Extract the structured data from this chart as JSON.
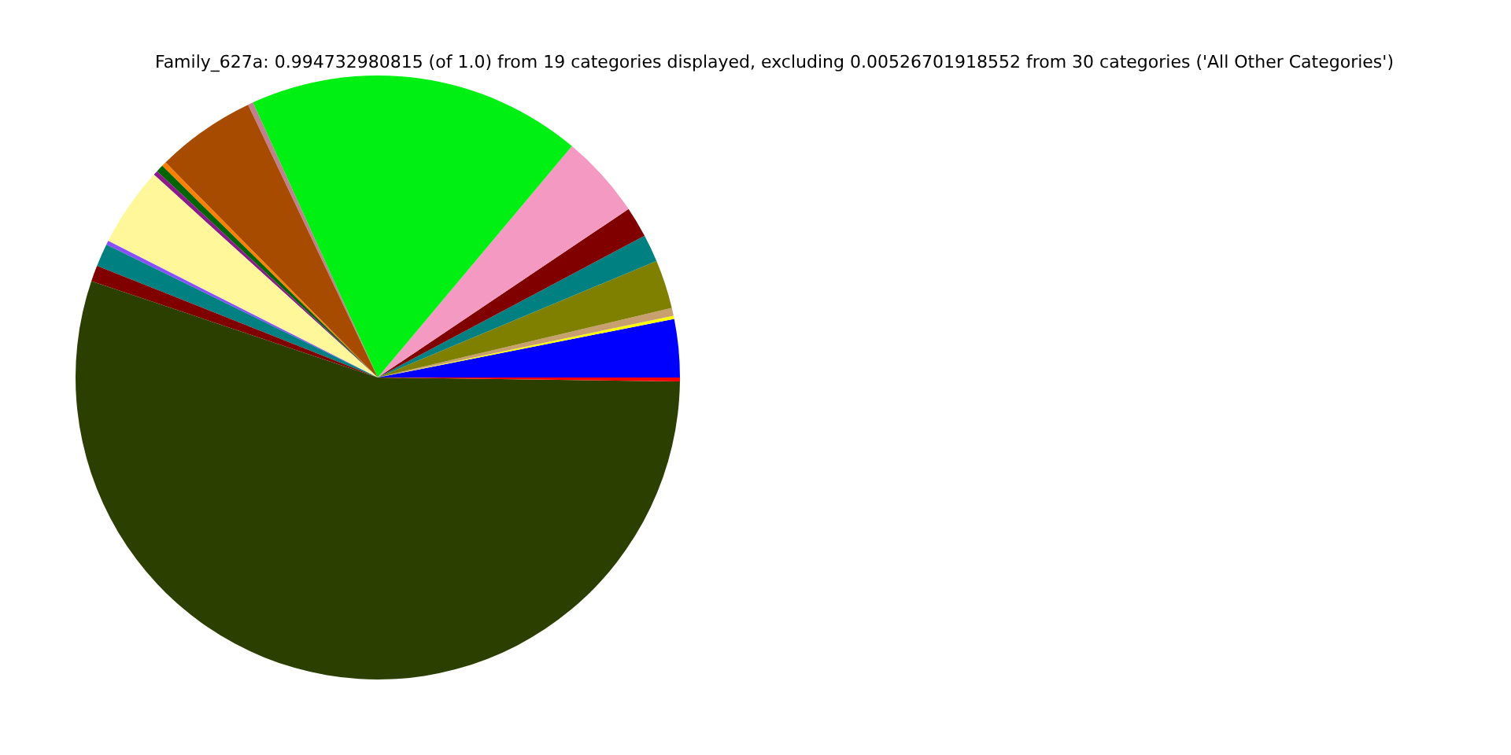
{
  "chart_data": {
    "type": "pie",
    "title": "Family_627a: 0.994732980815 (of 1.0) from 19 categories displayed, excluding 0.00526701918552 from 30 categories ('All Other Categories')",
    "categories": [
      null,
      null,
      null,
      null,
      null,
      null,
      null,
      null,
      null,
      null,
      null,
      null,
      null,
      null,
      null,
      null,
      null,
      null,
      null
    ],
    "values": [
      3.11,
      0.17,
      0.42,
      2.61,
      1.47,
      1.64,
      4.47,
      17.89,
      0.28,
      5.33,
      0.25,
      0.39,
      0.25,
      4.25,
      0.22,
      1.22,
      0.86,
      54.96,
      0.21
    ],
    "colors": [
      "#0000ff",
      "#ffff00",
      "#c8a070",
      "#808000",
      "#008080",
      "#800000",
      "#f49ac2",
      "#00f014",
      "#c08090",
      "#a64b00",
      "#ff8000",
      "#006400",
      "#8b1a8b",
      "#fff799",
      "#8a4fff",
      "#008080",
      "#800000",
      "#2b3f00",
      "#ff0000"
    ]
  }
}
